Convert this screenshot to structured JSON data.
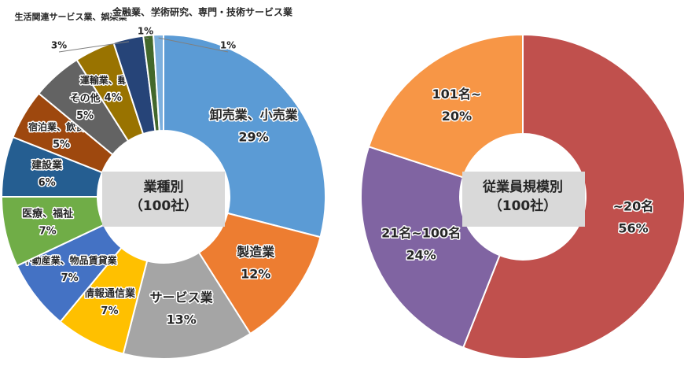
{
  "chart_data": [
    {
      "type": "pie",
      "donut": true,
      "center_label": [
        "業種別",
        "（100社）"
      ],
      "categories": [
        "卸売業、小売業",
        "製造業",
        "サービス業",
        "情報通信業",
        "不動産業、物品賃貸業",
        "医療、福祉",
        "建設業",
        "宿泊業、飲食店",
        "その他",
        "運輸業、郵便業",
        "生活関連サービス業、娯楽業",
        "金融業、保険業",
        "学術研究、専門・技術サービス業"
      ],
      "values": [
        29,
        12,
        13,
        7,
        7,
        7,
        6,
        5,
        5,
        4,
        3,
        1,
        1
      ],
      "value_labels": [
        "29%",
        "12%",
        "13%",
        "7%",
        "7%",
        "7%",
        "6%",
        "5%",
        "5%",
        "4%",
        "3%",
        "1%",
        "1%"
      ],
      "colors": [
        "#5b9bd5",
        "#ed7d31",
        "#a5a5a5",
        "#ffc000",
        "#4472c4",
        "#70ad47",
        "#255e91",
        "#9e480e",
        "#636363",
        "#997300",
        "#264478",
        "#43682b",
        "#7cafdd"
      ]
    },
    {
      "type": "pie",
      "donut": true,
      "center_label": [
        "従業員規模別",
        "（100社）"
      ],
      "categories": [
        "~20名",
        "21名~100名",
        "101名~"
      ],
      "values": [
        56,
        24,
        20
      ],
      "value_labels": [
        "56%",
        "24%",
        "20%"
      ],
      "colors": [
        "#c0504d",
        "#8064a2",
        "#f79646"
      ]
    }
  ]
}
